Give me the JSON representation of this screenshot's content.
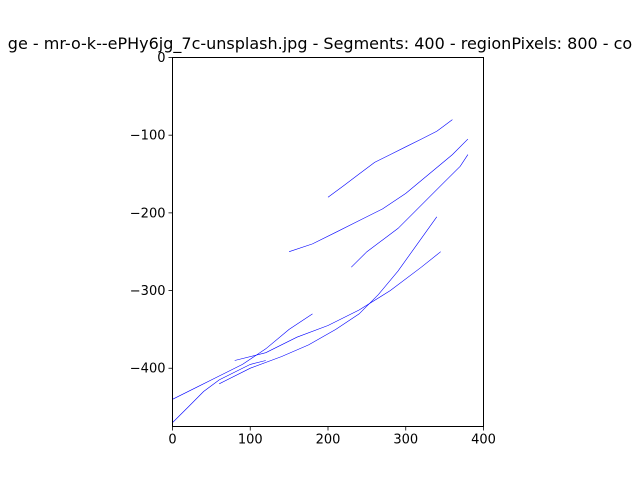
{
  "chart_data": {
    "type": "line",
    "title": "ge - mr-o-k--ePHy6jg_7c-unsplash.jpg - Segments: 400 - regionPixels: 800 - co",
    "xlabel": "",
    "ylabel": "",
    "xlim": [
      0,
      400
    ],
    "ylim": [
      -475,
      0
    ],
    "grid": false,
    "legend": "none",
    "x_ticks": [
      0,
      100,
      200,
      300,
      400
    ],
    "y_ticks": [
      0,
      -100,
      -200,
      -300,
      -400
    ],
    "series": [
      {
        "color": "#0000ff",
        "x": [
          60,
          100,
          140,
          175,
          210,
          240,
          265,
          290,
          315,
          340
        ],
        "y": [
          -420,
          -400,
          -385,
          -370,
          -350,
          -330,
          -305,
          -275,
          -240,
          -205
        ]
      },
      {
        "color": "#0000ff",
        "x": [
          80,
          120,
          160,
          200,
          240,
          280,
          320,
          345
        ],
        "y": [
          -390,
          -380,
          -360,
          -345,
          -325,
          -300,
          -270,
          -250
        ]
      },
      {
        "color": "#0000ff",
        "x": [
          230,
          250,
          270,
          290,
          310,
          330,
          350,
          370,
          380
        ],
        "y": [
          -270,
          -250,
          -235,
          -220,
          -200,
          -180,
          -160,
          -140,
          -125
        ]
      },
      {
        "color": "#0000ff",
        "x": [
          150,
          180,
          210,
          240,
          270,
          300,
          330,
          360,
          380
        ],
        "y": [
          -250,
          -240,
          -225,
          -210,
          -195,
          -175,
          -150,
          -125,
          -105
        ]
      },
      {
        "color": "#0000ff",
        "x": [
          200,
          220,
          240,
          260,
          280,
          300,
          320,
          340,
          360
        ],
        "y": [
          -180,
          -165,
          -150,
          -135,
          -125,
          -115,
          -105,
          -95,
          -80
        ]
      },
      {
        "color": "#0000ff",
        "x": [
          0,
          20,
          40,
          60,
          80,
          100,
          120
        ],
        "y": [
          -470,
          -450,
          -430,
          -415,
          -405,
          -395,
          -390
        ]
      },
      {
        "color": "#0000ff",
        "x": [
          0,
          30,
          60,
          90,
          120,
          150,
          180
        ],
        "y": [
          -440,
          -425,
          -410,
          -395,
          -375,
          -350,
          -330
        ]
      }
    ]
  }
}
